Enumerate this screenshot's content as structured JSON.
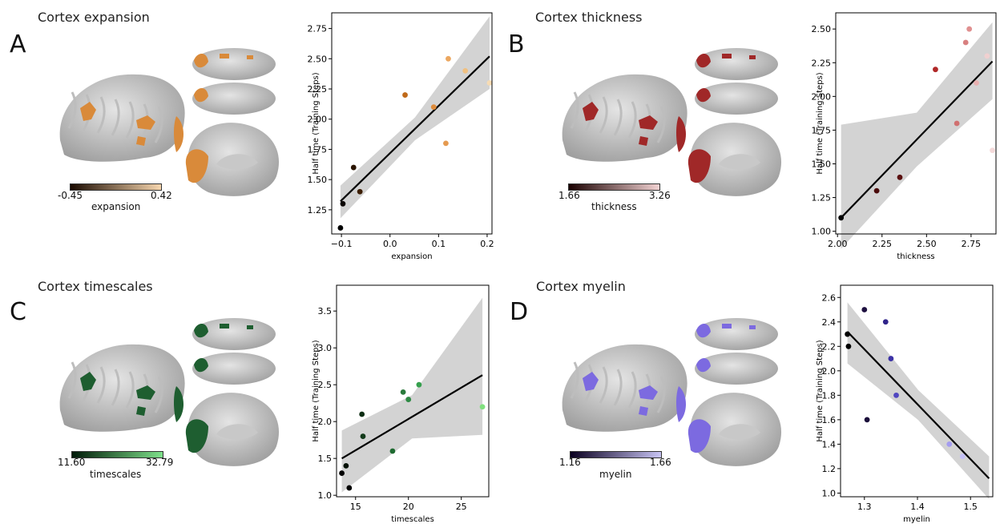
{
  "panels": [
    {
      "letter": "A",
      "title": "Cortex expansion",
      "colorbar": {
        "min": "-0.45",
        "max": "0.42",
        "label": "expansion",
        "c0": "#1a0a00",
        "c1": "#f7d6ae"
      },
      "brain_color": "#d98a3a",
      "chart_data": {
        "type": "scatter",
        "xlabel": "expansion",
        "ylabel": "Half time (Training Steps)",
        "xlim": [
          -0.12,
          0.21
        ],
        "ylim": [
          1.05,
          2.88
        ],
        "xticks": [
          -0.1,
          0.0,
          0.1,
          0.2
        ],
        "xtick_labels": [
          "−0.1",
          "0.0",
          "0.1",
          "0.2"
        ],
        "yticks": [
          1.25,
          1.5,
          1.75,
          2.0,
          2.25,
          2.5,
          2.75
        ],
        "ytick_labels": [
          "1.25",
          "1.50",
          "1.75",
          "2.00",
          "2.25",
          "2.50",
          "2.75"
        ],
        "points": [
          {
            "x": -0.102,
            "y": 1.1,
            "c": "#000000"
          },
          {
            "x": -0.097,
            "y": 1.3,
            "c": "#0a0400"
          },
          {
            "x": -0.075,
            "y": 1.6,
            "c": "#2a1400"
          },
          {
            "x": -0.062,
            "y": 1.4,
            "c": "#3d1f05"
          },
          {
            "x": 0.031,
            "y": 2.2,
            "c": "#c06a1a"
          },
          {
            "x": 0.09,
            "y": 2.1,
            "c": "#de8c3c"
          },
          {
            "x": 0.115,
            "y": 1.8,
            "c": "#e59a50"
          },
          {
            "x": 0.12,
            "y": 2.5,
            "c": "#eca760"
          },
          {
            "x": 0.155,
            "y": 2.4,
            "c": "#f0c080"
          },
          {
            "x": 0.205,
            "y": 2.3,
            "c": "#f7dcb4"
          }
        ],
        "fit": {
          "x0": -0.102,
          "y0": 1.32,
          "x1": 0.205,
          "y1": 2.52
        },
        "band": {
          "lo0": 1.18,
          "hi0": 1.45,
          "lo1": 2.25,
          "hi1": 2.85
        }
      }
    },
    {
      "letter": "B",
      "title": "Cortex thickness",
      "colorbar": {
        "min": "1.66",
        "max": "3.26",
        "label": "thickness",
        "c0": "#1a0000",
        "c1": "#f2d2d2"
      },
      "brain_color": "#a02828",
      "chart_data": {
        "type": "scatter",
        "xlabel": "thickness",
        "ylabel": "Half time (Training Steps)",
        "xlim": [
          1.99,
          2.89
        ],
        "ylim": [
          0.98,
          2.62
        ],
        "xticks": [
          2.0,
          2.25,
          2.5,
          2.75
        ],
        "xtick_labels": [
          "2.00",
          "2.25",
          "2.50",
          "2.75"
        ],
        "yticks": [
          1.0,
          1.25,
          1.5,
          1.75,
          2.0,
          2.25,
          2.5
        ],
        "ytick_labels": [
          "1.00",
          "1.25",
          "1.50",
          "1.75",
          "2.00",
          "2.25",
          "2.50"
        ],
        "points": [
          {
            "x": 2.02,
            "y": 1.1,
            "c": "#000000"
          },
          {
            "x": 2.22,
            "y": 1.3,
            "c": "#4a0a0a"
          },
          {
            "x": 2.35,
            "y": 1.4,
            "c": "#5a1010"
          },
          {
            "x": 2.55,
            "y": 2.2,
            "c": "#b02828"
          },
          {
            "x": 2.67,
            "y": 1.8,
            "c": "#d07070"
          },
          {
            "x": 2.72,
            "y": 2.4,
            "c": "#d88080"
          },
          {
            "x": 2.74,
            "y": 2.5,
            "c": "#e09090"
          },
          {
            "x": 2.78,
            "y": 2.1,
            "c": "#e8b0b0"
          },
          {
            "x": 2.84,
            "y": 2.3,
            "c": "#f0d0d0"
          },
          {
            "x": 2.87,
            "y": 1.6,
            "c": "#f4dada"
          }
        ],
        "fit": {
          "x0": 2.02,
          "y0": 1.1,
          "x1": 2.87,
          "y1": 2.26
        },
        "band": {
          "lo0": 0.87,
          "hi0": 1.79,
          "lo1": 1.98,
          "hi1": 2.55
        }
      }
    },
    {
      "letter": "C",
      "title": "Cortex timescales",
      "colorbar": {
        "min": "11.60",
        "max": "32.79",
        "label": "timescales",
        "c0": "#001a08",
        "c1": "#7ee08a"
      },
      "brain_color": "#1e5e30",
      "chart_data": {
        "type": "scatter",
        "xlabel": "timescales",
        "ylabel": "Half time (Training Steps)",
        "xlim": [
          13.2,
          27.6
        ],
        "ylim": [
          0.98,
          3.85
        ],
        "xticks": [
          15,
          20,
          25
        ],
        "xtick_labels": [
          "15",
          "20",
          "25"
        ],
        "yticks": [
          1.0,
          1.5,
          2.0,
          2.5,
          3.0,
          3.5
        ],
        "ytick_labels": [
          "1.0",
          "1.5",
          "2.0",
          "2.5",
          "3.0",
          "3.5"
        ],
        "points": [
          {
            "x": 13.7,
            "y": 1.3,
            "c": "#000000"
          },
          {
            "x": 14.1,
            "y": 1.4,
            "c": "#021004"
          },
          {
            "x": 14.4,
            "y": 1.1,
            "c": "#000000"
          },
          {
            "x": 15.6,
            "y": 2.1,
            "c": "#0e2e14"
          },
          {
            "x": 15.7,
            "y": 1.8,
            "c": "#123a1a"
          },
          {
            "x": 18.5,
            "y": 1.6,
            "c": "#1e6a30"
          },
          {
            "x": 19.5,
            "y": 2.4,
            "c": "#2a7a3c"
          },
          {
            "x": 20.0,
            "y": 2.3,
            "c": "#2e8a44"
          },
          {
            "x": 21.0,
            "y": 2.5,
            "c": "#36a04e"
          },
          {
            "x": 27.0,
            "y": 2.2,
            "c": "#80e07e"
          }
        ],
        "fit": {
          "x0": 13.7,
          "y0": 1.5,
          "x1": 27.0,
          "y1": 2.63
        },
        "band": {
          "lo0": 1.04,
          "hi0": 1.88,
          "lo1": 1.82,
          "hi1": 3.68
        }
      }
    },
    {
      "letter": "D",
      "title": "Cortex myelin",
      "colorbar": {
        "min": "1.16",
        "max": "1.66",
        "label": "myelin",
        "c0": "#0a0020",
        "c1": "#c8c4f4"
      },
      "brain_color": "#7c6ae0",
      "chart_data": {
        "type": "scatter",
        "xlabel": "myelin",
        "ylabel": "Half time (Training Steps)",
        "xlim": [
          1.255,
          1.542
        ],
        "ylim": [
          0.97,
          2.7
        ],
        "xticks": [
          1.3,
          1.4,
          1.5
        ],
        "xtick_labels": [
          "1.3",
          "1.4",
          "1.5"
        ],
        "yticks": [
          1.0,
          1.2,
          1.4,
          1.6,
          1.8,
          2.0,
          2.2,
          2.4,
          2.6
        ],
        "ytick_labels": [
          "1.0",
          "1.2",
          "1.4",
          "1.6",
          "1.8",
          "2.0",
          "2.2",
          "2.4",
          "2.6"
        ],
        "points": [
          {
            "x": 1.268,
            "y": 2.3,
            "c": "#000000"
          },
          {
            "x": 1.27,
            "y": 2.2,
            "c": "#000000"
          },
          {
            "x": 1.3,
            "y": 2.5,
            "c": "#1e1040"
          },
          {
            "x": 1.305,
            "y": 1.6,
            "c": "#1a0e3a"
          },
          {
            "x": 1.34,
            "y": 2.4,
            "c": "#30248a"
          },
          {
            "x": 1.35,
            "y": 2.1,
            "c": "#3c32a6"
          },
          {
            "x": 1.36,
            "y": 1.8,
            "c": "#5046c0"
          },
          {
            "x": 1.46,
            "y": 1.4,
            "c": "#a49cf0"
          },
          {
            "x": 1.485,
            "y": 1.3,
            "c": "#c4c0f6"
          }
        ],
        "fit": {
          "x0": 1.268,
          "y0": 2.32,
          "x1": 1.535,
          "y1": 1.12
        },
        "band": {
          "lo0": 2.06,
          "hi0": 2.56,
          "lo1": 0.95,
          "hi1": 1.3
        }
      }
    }
  ]
}
